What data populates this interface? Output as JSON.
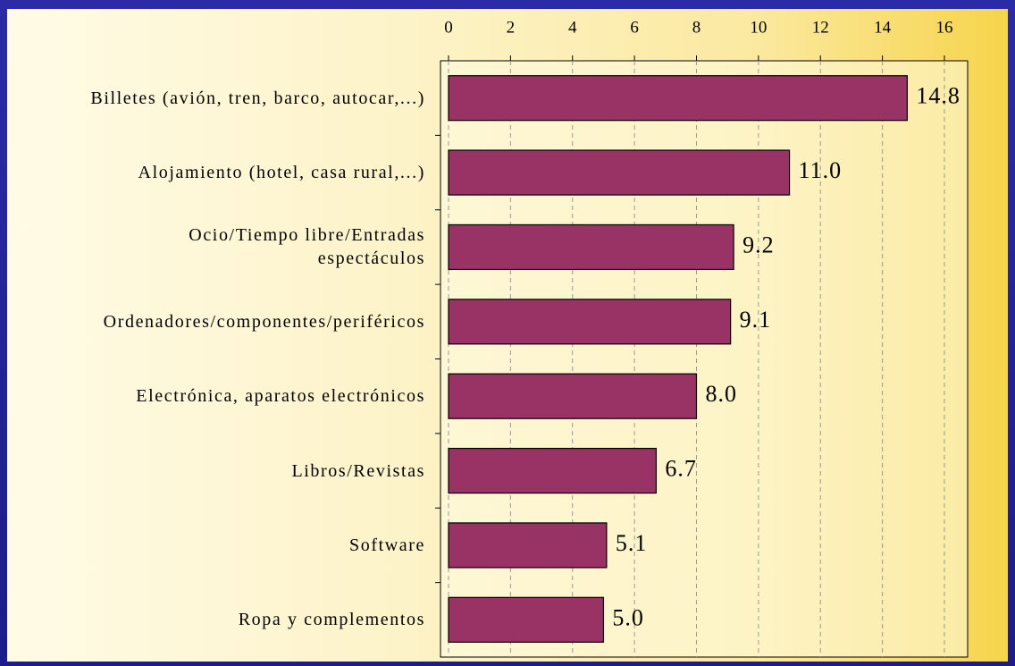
{
  "chart_data": {
    "type": "bar",
    "orientation": "horizontal",
    "categories": [
      "Billetes (avión, tren, barco, autocar,...)",
      "Alojamiento (hotel, casa rural,...)",
      "Ocio/Tiempo libre/Entradas\nespectáculos",
      "Ordenadores/componentes/periféricos",
      "Electrónica, aparatos electrónicos",
      "Libros/Revistas",
      "Software",
      "Ropa y complementos"
    ],
    "values": [
      14.8,
      11.0,
      9.2,
      9.1,
      8.0,
      6.7,
      5.1,
      5.0
    ],
    "value_labels": [
      "14.8",
      "11.0",
      "9.2",
      "9.1",
      "8.0",
      "6.7",
      "5.1",
      "5.0"
    ],
    "color": "#993366",
    "xlim": [
      0,
      16.75
    ],
    "xticks": [
      0,
      2,
      4,
      6,
      8,
      10,
      12,
      14,
      16
    ],
    "grid": true
  }
}
